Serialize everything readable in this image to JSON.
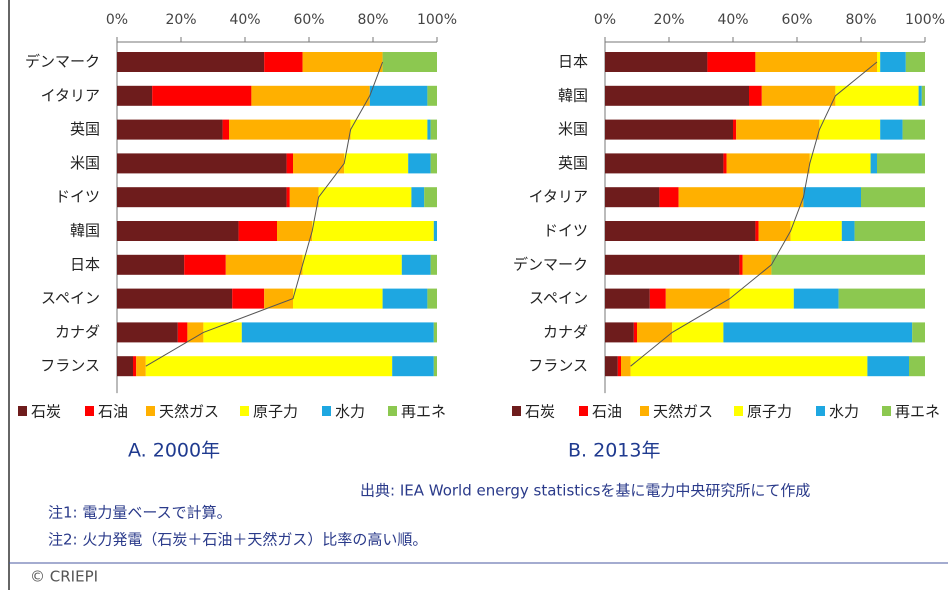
{
  "chart_data": [
    {
      "type": "bar",
      "orientation": "horizontal",
      "stacked": true,
      "title": "A. 2000年",
      "categories": [
        "デンマーク",
        "イタリア",
        "英国",
        "米国",
        "ドイツ",
        "韓国",
        "日本",
        "スペイン",
        "カナダ",
        "フランス"
      ],
      "series": [
        {
          "name": "石炭",
          "color": "#6e1c1c",
          "values": [
            46,
            11,
            33,
            53,
            53,
            38,
            21,
            36,
            19,
            5
          ]
        },
        {
          "name": "石油",
          "color": "#ff0000",
          "values": [
            12,
            31,
            2,
            2,
            1,
            12,
            13,
            10,
            3,
            1
          ]
        },
        {
          "name": "天然ガス",
          "color": "#ffb000",
          "values": [
            25,
            37,
            38,
            16,
            9,
            11,
            24,
            9,
            5,
            3
          ]
        },
        {
          "name": "原子力",
          "color": "#ffff00",
          "values": [
            0,
            0,
            24,
            20,
            29,
            38,
            31,
            28,
            12,
            77
          ]
        },
        {
          "name": "水力",
          "color": "#1ea7e1",
          "values": [
            0,
            18,
            1,
            7,
            4,
            1,
            9,
            14,
            60,
            13
          ]
        },
        {
          "name": "再エネ",
          "color": "#8cc850",
          "values": [
            17,
            3,
            2,
            2,
            4,
            0,
            2,
            3,
            1,
            1
          ]
        }
      ],
      "xlim": [
        0,
        100
      ],
      "xticks": [
        {
          "value": 0,
          "label": "0%"
        },
        {
          "value": 20,
          "label": "20%"
        },
        {
          "value": 40,
          "label": "40%"
        },
        {
          "value": 60,
          "label": "60%"
        },
        {
          "value": 80,
          "label": "80%"
        },
        {
          "value": 100,
          "label": "100%"
        }
      ]
    },
    {
      "type": "bar",
      "orientation": "horizontal",
      "stacked": true,
      "title": "B. 2013年",
      "categories": [
        "日本",
        "韓国",
        "米国",
        "英国",
        "イタリア",
        "ドイツ",
        "デンマーク",
        "スペイン",
        "カナダ",
        "フランス"
      ],
      "series": [
        {
          "name": "石炭",
          "color": "#6e1c1c",
          "values": [
            32,
            45,
            40,
            37,
            17,
            47,
            42,
            14,
            9,
            4
          ]
        },
        {
          "name": "石油",
          "color": "#ff0000",
          "values": [
            15,
            4,
            1,
            1,
            6,
            1,
            1,
            5,
            1,
            1
          ]
        },
        {
          "name": "天然ガス",
          "color": "#ffb000",
          "values": [
            38,
            23,
            26,
            26,
            39,
            10,
            9,
            20,
            11,
            3
          ]
        },
        {
          "name": "原子力",
          "color": "#ffff00",
          "values": [
            1,
            26,
            19,
            19,
            0,
            16,
            0,
            20,
            16,
            74
          ]
        },
        {
          "name": "水力",
          "color": "#1ea7e1",
          "values": [
            8,
            1,
            7,
            2,
            18,
            4,
            0,
            14,
            59,
            13
          ]
        },
        {
          "name": "再エネ",
          "color": "#8cc850",
          "values": [
            6,
            1,
            7,
            15,
            20,
            22,
            48,
            27,
            4,
            5
          ]
        }
      ],
      "xlim": [
        0,
        100
      ],
      "xticks": [
        {
          "value": 0,
          "label": "0%"
        },
        {
          "value": 20,
          "label": "20%"
        },
        {
          "value": 40,
          "label": "40%"
        },
        {
          "value": 60,
          "label": "60%"
        },
        {
          "value": 80,
          "label": "80%"
        },
        {
          "value": 100,
          "label": "100%"
        }
      ]
    }
  ],
  "footer": {
    "source": "出典: IEA World energy statisticsを基に電力中央研究所にて作成",
    "notes": [
      "注1: 電力量ベースで計算。",
      "注2: 火力発電（石炭＋石油＋天然ガス）比率の高い順。"
    ],
    "copyright": "© CRIEPI"
  }
}
